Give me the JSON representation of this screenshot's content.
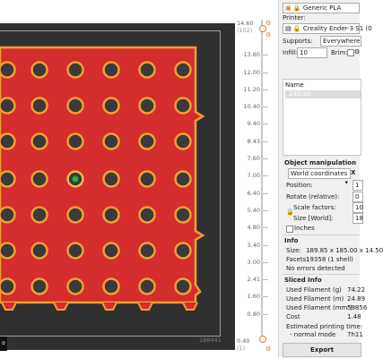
{
  "viewport": {
    "coord_readout": "188441",
    "corner_button": "o"
  },
  "layer_slider": {
    "top_value": "14.60",
    "top_sub": "(102)",
    "bottom_value": "0.40",
    "bottom_sub": "(1)",
    "ticks": [
      "14.60",
      "13.80",
      "12.00",
      "11.20",
      "10.40",
      "9.40",
      "8.43",
      "7.60",
      "7.00",
      "6.40",
      "5.40",
      "4.80",
      "3.40",
      "3.00",
      "2.41",
      "1.60",
      "0.80",
      "0.40"
    ]
  },
  "panel": {
    "filament": "Generic PLA",
    "printer_label": "Printer:",
    "printer": "Creality Ender-3 S1 (0",
    "supports_label": "Supports:",
    "supports": "Everywhere",
    "infill_label": "Infill:",
    "infill": "10",
    "brim_label": "Brim:",
    "name_header": "Name",
    "object_name": "Z40.stl",
    "object_manipulation_title": "Object manipulation",
    "coord_system": "World coordinates",
    "position_label": "Position:",
    "position_value": "1",
    "rotate_label": "Rotate (relative):",
    "rotate_value": "0",
    "scale_label": "Scale factors:",
    "scale_value": "10",
    "size_label": "Size [World]:",
    "size_value": "18",
    "inches_label": "Inches",
    "info_title": "Info",
    "info_size_label": "Size:",
    "info_size": "189.85 x 185.00 x 14.50",
    "facets_label": "Facets:",
    "facets": "19358 (1 shell)",
    "errors": "No errors detected",
    "sliced_title": "Sliced Info",
    "used_g_label": "Used Filament (g)",
    "used_g": "74.22",
    "used_m_label": "Used Filament (m)",
    "used_m": "24.89",
    "used_mm3_label": "Used Filament (mm³)",
    "used_mm3": "59856",
    "cost_label": "Cost",
    "cost": "1.48",
    "est_time_label": "Estimated printing time:",
    "normal_mode_label": "- normal mode",
    "normal_mode": "7h11",
    "export_button": "Export"
  },
  "colors": {
    "infill_red": "#d42d2d",
    "perimeter_orange": "#f0a030",
    "bed_dark": "#303030",
    "accent_orange": "#e07b2a"
  }
}
